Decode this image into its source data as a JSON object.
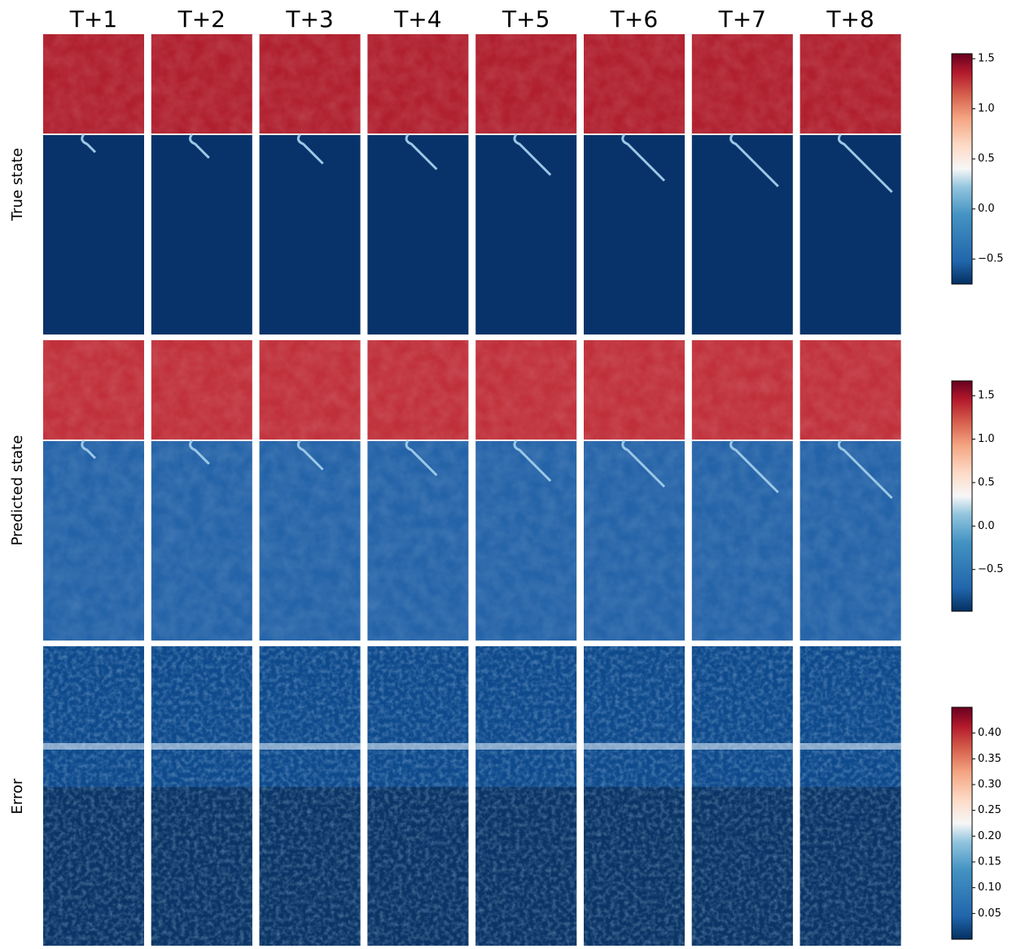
{
  "columns": [
    "T+1",
    "T+2",
    "T+3",
    "T+4",
    "T+5",
    "T+6",
    "T+7",
    "T+8"
  ],
  "rows": [
    {
      "label": "True state",
      "cbar_lim": [
        -0.75,
        1.55
      ],
      "cbar_ticks": [
        {
          "value": -0.5,
          "label": "−0.5"
        },
        {
          "value": 0,
          "label": "0.0"
        },
        0.5,
        {
          "value": 1,
          "label": "1.0"
        },
        1.5
      ]
    },
    {
      "label": "Predicted state",
      "cbar_lim": [
        -0.98,
        1.67
      ],
      "cbar_ticks": [
        {
          "value": -0.5,
          "label": "−0.5"
        },
        {
          "value": 0,
          "label": "0.0"
        },
        0.5,
        {
          "value": 1,
          "label": "1.0"
        },
        1.5
      ]
    },
    {
      "label": "Error",
      "cbar_lim": [
        0,
        0.45
      ],
      "cbar_ticks": [
        0.05,
        {
          "value": 0.1,
          "label": "0.10"
        },
        0.15,
        {
          "value": 0.2,
          "label": "0.20"
        },
        0.25,
        {
          "value": 0.3,
          "label": "0.30"
        },
        0.35,
        {
          "value": 0.4,
          "label": "0.40"
        }
      ]
    }
  ]
}
